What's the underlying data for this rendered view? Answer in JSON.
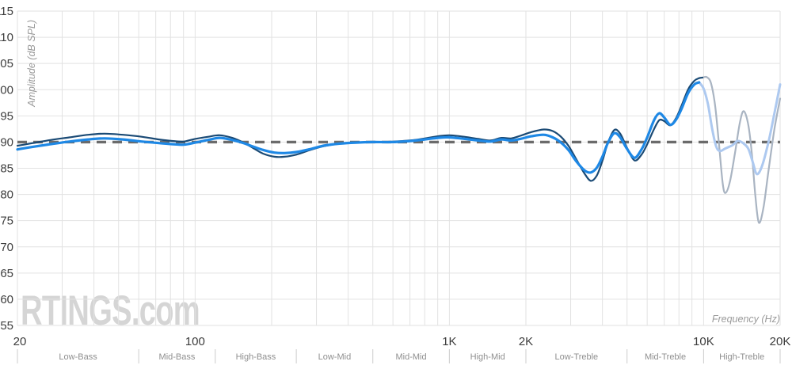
{
  "watermark": {
    "text": "RTINGS.com"
  },
  "axes": {
    "y_title": "Amplitude (dB SPL)",
    "x_title": "Frequency (Hz)",
    "y_ticks": [
      115,
      110,
      105,
      100,
      95,
      90,
      85,
      80,
      75,
      70,
      65,
      60,
      55
    ],
    "x_ticks": [
      {
        "f": 20,
        "label": "20"
      },
      {
        "f": 100,
        "label": "100"
      },
      {
        "f": 1000,
        "label": "1K"
      },
      {
        "f": 2000,
        "label": "2K"
      },
      {
        "f": 10000,
        "label": "10K"
      },
      {
        "f": 20000,
        "label": "20K"
      }
    ]
  },
  "bands": {
    "boundaries": [
      20,
      60,
      120,
      250,
      500,
      1000,
      2000,
      5000,
      10000,
      20000
    ],
    "labels": [
      "Low-Bass",
      "Mid-Bass",
      "High-Bass",
      "Low-Mid",
      "Mid-Mid",
      "High-Mid",
      "Low-Treble",
      "Mid-Treble",
      "High-Treble"
    ]
  },
  "colors": {
    "background": "#ffffff",
    "grid": "#e2e2e2",
    "tick_label": "#3d3d3d",
    "band_label": "#8f8f8f",
    "band_divider": "#cccccc",
    "axis_title": "#9a9a9a",
    "watermark": "#d5d5d5",
    "target": "#6b6b6b",
    "navy": "#1a4a75",
    "blue": "#1e88e5",
    "faded_navy": "#a9b4c2",
    "faded_blue": "#adc9f0"
  },
  "chart_data": {
    "type": "line",
    "x_scale": "log",
    "xlabel": "Frequency (Hz)",
    "ylabel": "Amplitude (dB SPL)",
    "xlim": [
      20,
      20000
    ],
    "ylim": [
      55,
      115
    ],
    "grid": true,
    "target_line_db": 90,
    "series": [
      {
        "name": "left-driver-faded-above-10k",
        "color_key": "faded_navy",
        "width": 2.2,
        "points": [
          [
            9900,
            102.3
          ],
          [
            10300,
            102.4
          ],
          [
            10700,
            101.2
          ],
          [
            11100,
            97.0
          ],
          [
            11500,
            89.5
          ],
          [
            11900,
            82.0
          ],
          [
            12200,
            80.3
          ],
          [
            12700,
            82.5
          ],
          [
            13300,
            88.0
          ],
          [
            13900,
            93.8
          ],
          [
            14400,
            95.9
          ],
          [
            15000,
            93.2
          ],
          [
            15500,
            87.5
          ],
          [
            16000,
            79.5
          ],
          [
            16500,
            74.6
          ],
          [
            17200,
            77.5
          ],
          [
            18000,
            84.5
          ],
          [
            19000,
            92.5
          ],
          [
            20000,
            98.3
          ]
        ]
      },
      {
        "name": "right-driver-faded-above-10k",
        "color_key": "faded_blue",
        "width": 3.0,
        "points": [
          [
            9600,
            101.4
          ],
          [
            10000,
            100.2
          ],
          [
            10400,
            97.3
          ],
          [
            10800,
            92.6
          ],
          [
            11200,
            89.2
          ],
          [
            11600,
            88.3
          ],
          [
            12200,
            88.8
          ],
          [
            13000,
            89.4
          ],
          [
            13600,
            90.2
          ],
          [
            14300,
            89.8
          ],
          [
            15000,
            88.7
          ],
          [
            15600,
            86.2
          ],
          [
            16200,
            83.9
          ],
          [
            17000,
            85.5
          ],
          [
            18000,
            90.0
          ],
          [
            19000,
            95.5
          ],
          [
            20000,
            101.0
          ]
        ]
      },
      {
        "name": "left-driver",
        "color_key": "navy",
        "width": 2.2,
        "points": [
          [
            20,
            89.3
          ],
          [
            23,
            89.8
          ],
          [
            27,
            90.4
          ],
          [
            32,
            90.9
          ],
          [
            38,
            91.4
          ],
          [
            44,
            91.6
          ],
          [
            52,
            91.4
          ],
          [
            62,
            91.0
          ],
          [
            72,
            90.5
          ],
          [
            82,
            90.2
          ],
          [
            90,
            90.1
          ],
          [
            100,
            90.6
          ],
          [
            112,
            91.0
          ],
          [
            125,
            91.3
          ],
          [
            140,
            90.8
          ],
          [
            155,
            89.9
          ],
          [
            170,
            88.8
          ],
          [
            185,
            87.8
          ],
          [
            205,
            87.2
          ],
          [
            225,
            87.2
          ],
          [
            250,
            87.6
          ],
          [
            280,
            88.4
          ],
          [
            320,
            89.2
          ],
          [
            370,
            89.7
          ],
          [
            430,
            89.9
          ],
          [
            500,
            90.0
          ],
          [
            600,
            90.1
          ],
          [
            700,
            90.3
          ],
          [
            800,
            90.7
          ],
          [
            900,
            91.1
          ],
          [
            1000,
            91.3
          ],
          [
            1150,
            91.0
          ],
          [
            1300,
            90.6
          ],
          [
            1450,
            90.3
          ],
          [
            1600,
            90.8
          ],
          [
            1750,
            90.7
          ],
          [
            1900,
            91.2
          ],
          [
            2100,
            91.9
          ],
          [
            2350,
            92.4
          ],
          [
            2550,
            92.1
          ],
          [
            2750,
            91.0
          ],
          [
            2950,
            89.2
          ],
          [
            3150,
            86.8
          ],
          [
            3400,
            84.0
          ],
          [
            3600,
            82.6
          ],
          [
            3800,
            83.6
          ],
          [
            4000,
            86.4
          ],
          [
            4200,
            89.8
          ],
          [
            4450,
            92.3
          ],
          [
            4700,
            91.6
          ],
          [
            5000,
            88.9
          ],
          [
            5350,
            86.5
          ],
          [
            5700,
            87.6
          ],
          [
            6000,
            89.6
          ],
          [
            6400,
            92.6
          ],
          [
            6700,
            94.2
          ],
          [
            7000,
            94.0
          ],
          [
            7400,
            93.2
          ],
          [
            7800,
            94.6
          ],
          [
            8200,
            97.0
          ],
          [
            8700,
            100.1
          ],
          [
            9200,
            101.7
          ],
          [
            9600,
            102.2
          ],
          [
            9900,
            102.3
          ]
        ]
      },
      {
        "name": "right-driver",
        "color_key": "blue",
        "width": 3.2,
        "points": [
          [
            20,
            88.6
          ],
          [
            23,
            89.1
          ],
          [
            27,
            89.6
          ],
          [
            32,
            90.1
          ],
          [
            38,
            90.5
          ],
          [
            44,
            90.7
          ],
          [
            52,
            90.5
          ],
          [
            62,
            90.1
          ],
          [
            72,
            89.8
          ],
          [
            82,
            89.6
          ],
          [
            90,
            89.5
          ],
          [
            100,
            89.9
          ],
          [
            112,
            90.4
          ],
          [
            125,
            90.8
          ],
          [
            140,
            90.4
          ],
          [
            155,
            89.8
          ],
          [
            170,
            89.1
          ],
          [
            185,
            88.5
          ],
          [
            205,
            88.0
          ],
          [
            225,
            87.9
          ],
          [
            250,
            88.1
          ],
          [
            280,
            88.6
          ],
          [
            320,
            89.3
          ],
          [
            370,
            89.7
          ],
          [
            430,
            89.9
          ],
          [
            500,
            90.0
          ],
          [
            600,
            90.0
          ],
          [
            700,
            90.2
          ],
          [
            800,
            90.5
          ],
          [
            900,
            90.8
          ],
          [
            1000,
            90.9
          ],
          [
            1150,
            90.6
          ],
          [
            1300,
            90.3
          ],
          [
            1450,
            90.1
          ],
          [
            1600,
            90.5
          ],
          [
            1750,
            90.3
          ],
          [
            1900,
            90.6
          ],
          [
            2100,
            91.1
          ],
          [
            2350,
            91.4
          ],
          [
            2550,
            90.9
          ],
          [
            2750,
            89.9
          ],
          [
            2950,
            88.4
          ],
          [
            3150,
            86.4
          ],
          [
            3400,
            84.6
          ],
          [
            3600,
            84.2
          ],
          [
            3800,
            85.1
          ],
          [
            4000,
            87.2
          ],
          [
            4200,
            89.8
          ],
          [
            4450,
            91.7
          ],
          [
            4700,
            90.9
          ],
          [
            5000,
            88.7
          ],
          [
            5350,
            87.0
          ],
          [
            5700,
            88.6
          ],
          [
            6000,
            90.9
          ],
          [
            6400,
            94.3
          ],
          [
            6700,
            95.5
          ],
          [
            7000,
            94.7
          ],
          [
            7400,
            93.3
          ],
          [
            7800,
            94.3
          ],
          [
            8200,
            96.4
          ],
          [
            8700,
            99.4
          ],
          [
            9200,
            101.0
          ],
          [
            9600,
            101.4
          ]
        ]
      }
    ]
  }
}
